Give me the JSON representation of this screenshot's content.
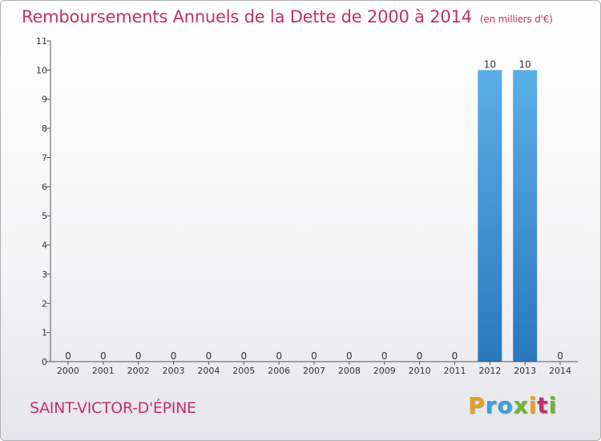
{
  "header": {
    "title": "Remboursements Annuels de la Dette de 2000 à 2014",
    "subtitle": "(en milliers d'€)"
  },
  "footer": {
    "commune": "SAINT-VICTOR-D'ÉPINE",
    "brand": [
      "P",
      "r",
      "o",
      "x",
      "i",
      "t",
      "i"
    ],
    "brand_colors": [
      "#e8a01c",
      "#3aa0de",
      "#3aa0de",
      "#6cb52f",
      "#e8a01c",
      "#c0306a",
      "#6cb52f"
    ]
  },
  "chart_data": {
    "type": "bar",
    "categories": [
      "2000",
      "2001",
      "2002",
      "2003",
      "2004",
      "2005",
      "2006",
      "2007",
      "2008",
      "2009",
      "2010",
      "2011",
      "2012",
      "2013",
      "2014"
    ],
    "values": [
      0,
      0,
      0,
      0,
      0,
      0,
      0,
      0,
      0,
      0,
      0,
      0,
      10,
      10,
      0
    ],
    "data_labels": [
      "0",
      "0",
      "0",
      "0",
      "0",
      "0",
      "0",
      "0",
      "0",
      "0",
      "0",
      "0",
      "10",
      "10",
      "0"
    ],
    "title": "Remboursements Annuels de la Dette de 2000 à 2014",
    "xlabel": "",
    "ylabel": "",
    "ylim": [
      0,
      11
    ],
    "yticks": [
      0,
      1,
      2,
      3,
      4,
      5,
      6,
      7,
      8,
      9,
      10,
      11
    ],
    "ytick_labels": [
      "0",
      "1",
      "2",
      "3",
      "4",
      "5",
      "6",
      "7",
      "8",
      "9",
      "10",
      "11"
    ],
    "grid": false,
    "bar_color_top": "#5aaee8",
    "bar_color_bottom": "#2a78bd"
  }
}
